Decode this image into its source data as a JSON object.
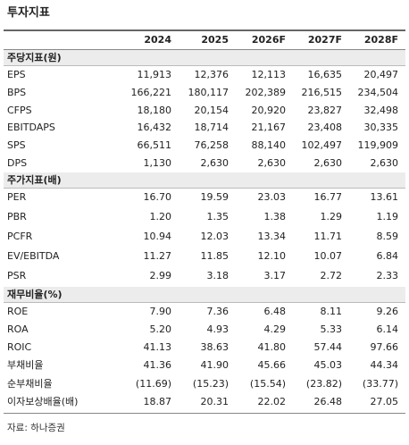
{
  "header": {
    "title": "투자지표"
  },
  "table": {
    "columns": [
      "2024",
      "2025",
      "2026F",
      "2027F",
      "2028F"
    ],
    "sections": [
      {
        "title": "주당지표(원)",
        "rows": [
          {
            "label": "EPS",
            "values": [
              "11,913",
              "12,376",
              "12,113",
              "16,635",
              "20,497"
            ]
          },
          {
            "label": "BPS",
            "values": [
              "166,221",
              "180,117",
              "202,389",
              "216,515",
              "234,504"
            ]
          },
          {
            "label": "CFPS",
            "values": [
              "18,180",
              "20,154",
              "20,920",
              "23,827",
              "32,498"
            ]
          },
          {
            "label": "EBITDAPS",
            "values": [
              "16,432",
              "18,714",
              "21,167",
              "23,408",
              "30,335"
            ]
          },
          {
            "label": "SPS",
            "values": [
              "66,511",
              "76,258",
              "88,140",
              "102,497",
              "119,909"
            ]
          },
          {
            "label": "DPS",
            "values": [
              "1,130",
              "2,630",
              "2,630",
              "2,630",
              "2,630"
            ]
          }
        ]
      },
      {
        "title": "주가지표(배)",
        "rows": [
          {
            "label": "PER",
            "values": [
              "16.70",
              "19.59",
              "23.03",
              "16.77",
              "13.61"
            ]
          },
          {
            "label": "PBR",
            "values": [
              "1.20",
              "1.35",
              "1.38",
              "1.29",
              "1.19"
            ]
          },
          {
            "label": "PCFR",
            "values": [
              "10.94",
              "12.03",
              "13.34",
              "11.71",
              "8.59"
            ]
          },
          {
            "label": "EV/EBITDA",
            "values": [
              "11.27",
              "11.85",
              "12.10",
              "10.07",
              "6.84"
            ]
          },
          {
            "label": "PSR",
            "values": [
              "2.99",
              "3.18",
              "3.17",
              "2.72",
              "2.33"
            ]
          }
        ]
      },
      {
        "title": "재무비율(%)",
        "rows": [
          {
            "label": "ROE",
            "values": [
              "7.90",
              "7.36",
              "6.48",
              "8.11",
              "9.26"
            ]
          },
          {
            "label": "ROA",
            "values": [
              "5.20",
              "4.93",
              "4.29",
              "5.33",
              "6.14"
            ]
          },
          {
            "label": "ROIC",
            "values": [
              "41.13",
              "38.63",
              "41.80",
              "57.44",
              "97.66"
            ]
          },
          {
            "label": "부채비율",
            "values": [
              "41.36",
              "41.90",
              "45.66",
              "45.03",
              "44.34"
            ]
          },
          {
            "label": "순부채비율",
            "values": [
              "(11.69)",
              "(15.23)",
              "(15.54)",
              "(23.82)",
              "(33.77)"
            ]
          },
          {
            "label": "이자보상배율(배)",
            "values": [
              "18.87",
              "20.31",
              "22.02",
              "26.48",
              "27.05"
            ]
          }
        ]
      }
    ]
  },
  "footer": {
    "source": "자료: 하나증권"
  }
}
